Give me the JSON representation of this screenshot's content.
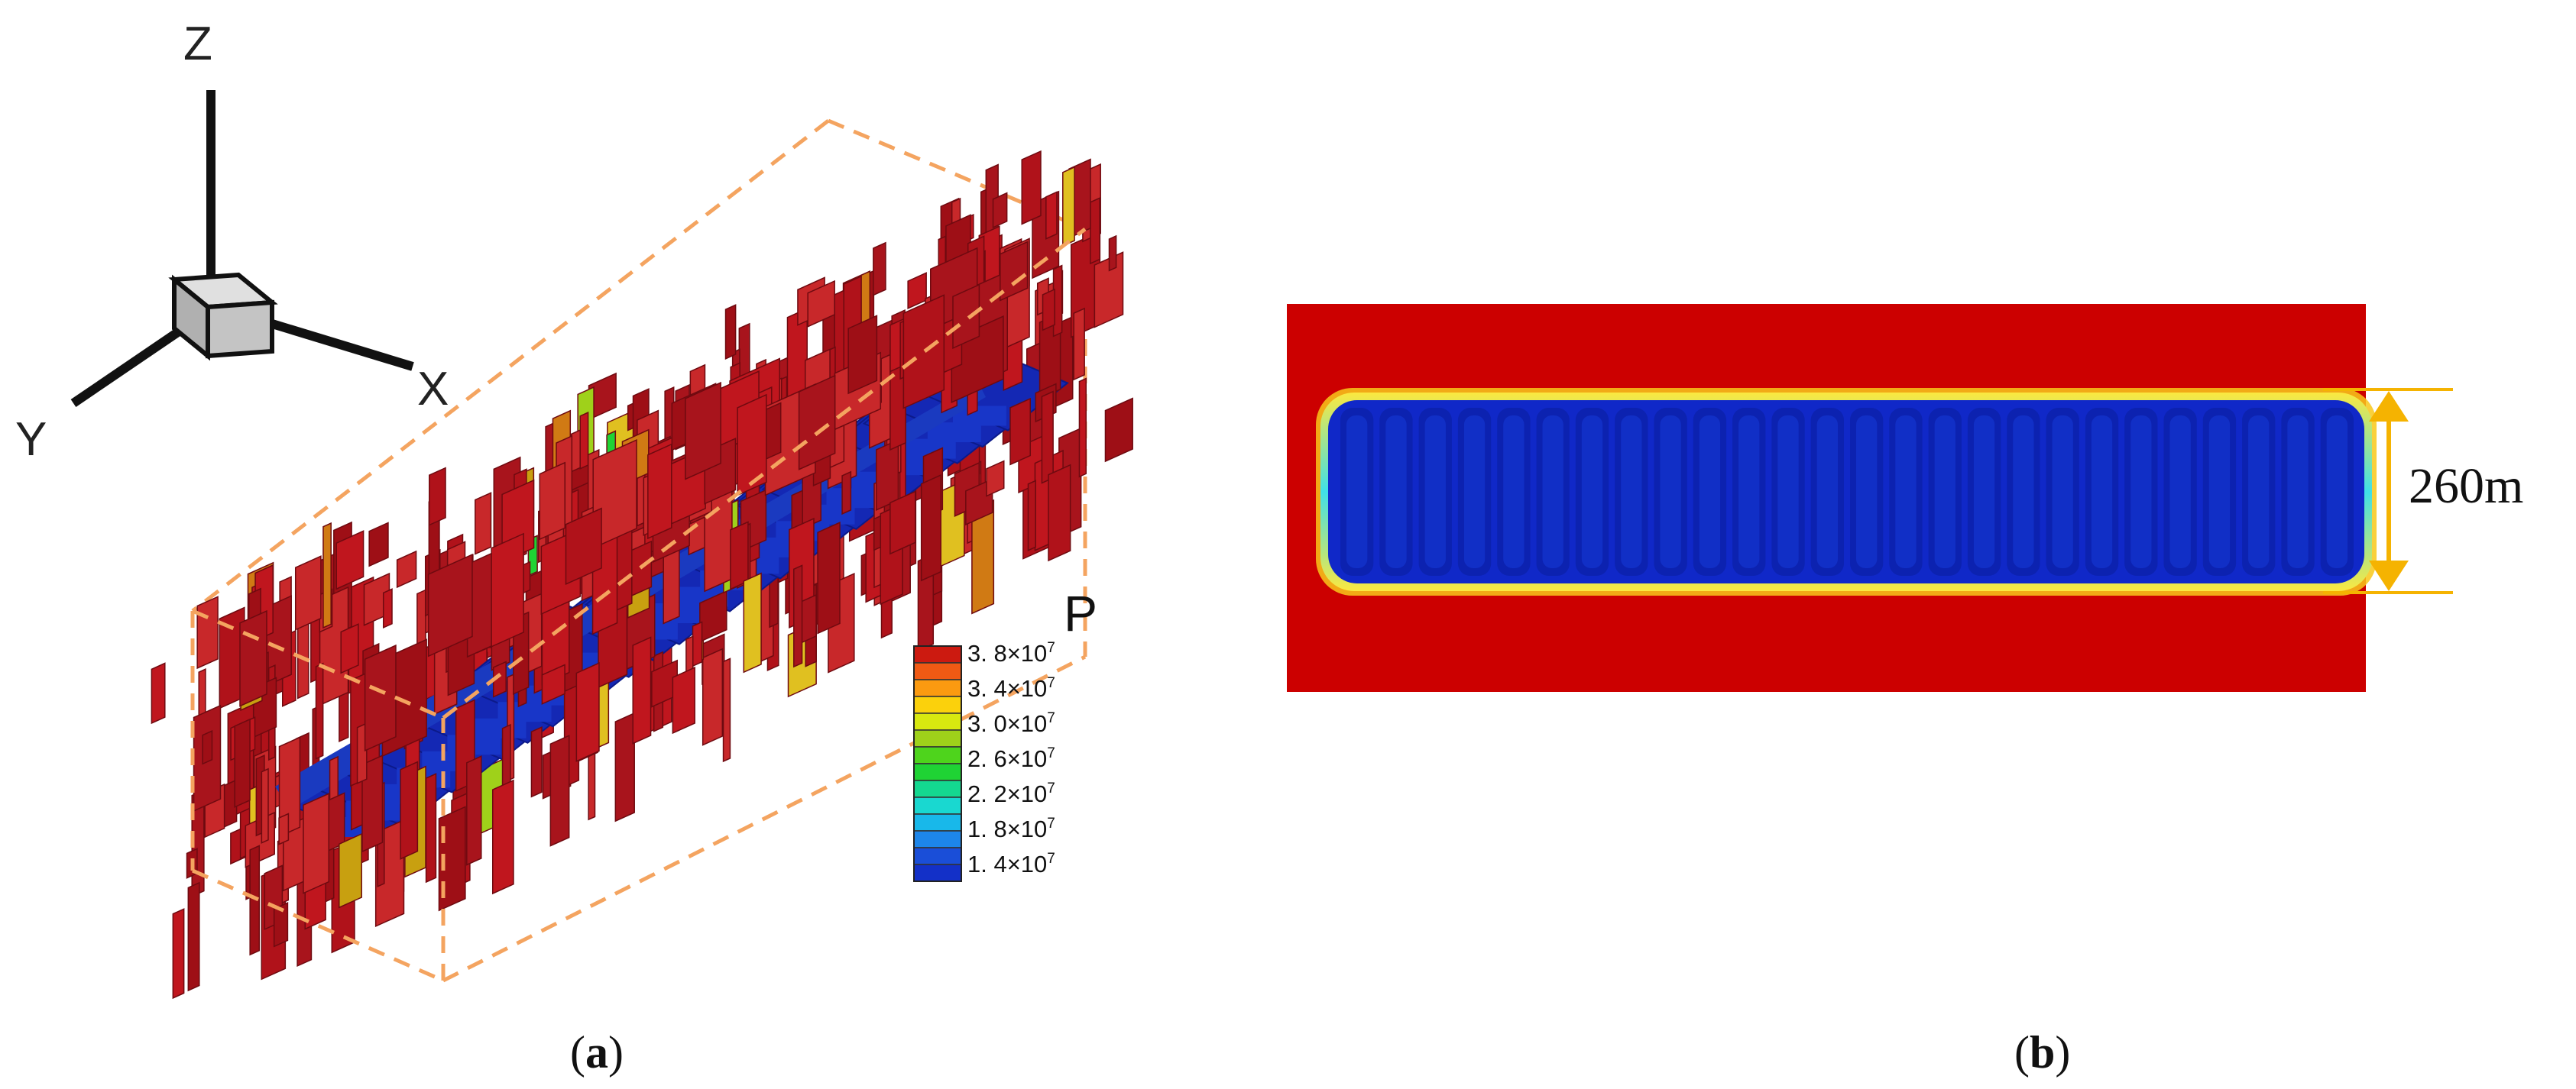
{
  "panel_a": {
    "label_open": "(",
    "label_letter": "a",
    "label_close": ")",
    "axes": {
      "z": "Z",
      "x": "X",
      "y": "Y"
    },
    "legend": {
      "title": "P",
      "multiplier": "×10",
      "entries": [
        {
          "value": "3. 8",
          "exp": "7",
          "color": "#e53a1c"
        },
        {
          "value": "3. 4",
          "exp": "7",
          "color": "#fbb30a"
        },
        {
          "value": "3. 0",
          "exp": "7",
          "color": "#9fd11a"
        },
        {
          "value": "2. 6",
          "exp": "7",
          "color": "#1fd334"
        },
        {
          "value": "2. 2",
          "exp": "7",
          "color": "#19d8b4"
        },
        {
          "value": "1. 8",
          "exp": "7",
          "color": "#1d9bea"
        },
        {
          "value": "1. 4",
          "exp": "7",
          "color": "#1330c8"
        }
      ],
      "swatch_colors": [
        "#cc1a10",
        "#f05a14",
        "#fb9a10",
        "#fbd10c",
        "#d8e810",
        "#9fd11a",
        "#4ed41c",
        "#1fd334",
        "#14d890",
        "#19d8d0",
        "#18b8ea",
        "#1d86ea",
        "#1a4ed8",
        "#1330c8"
      ]
    },
    "colors": {
      "fracture_red": "#b0121a",
      "matrix_blue": "#1428b4",
      "box_edge": "#f4a460",
      "cube_face": "#c8c8c8"
    }
  },
  "panel_b": {
    "label_open": "(",
    "label_letter": "b",
    "label_close": ")",
    "dimension": "260m",
    "colors": {
      "background_red": "#cc0000",
      "band_blue": "#1028c8",
      "arrow": "#f5b301"
    }
  }
}
